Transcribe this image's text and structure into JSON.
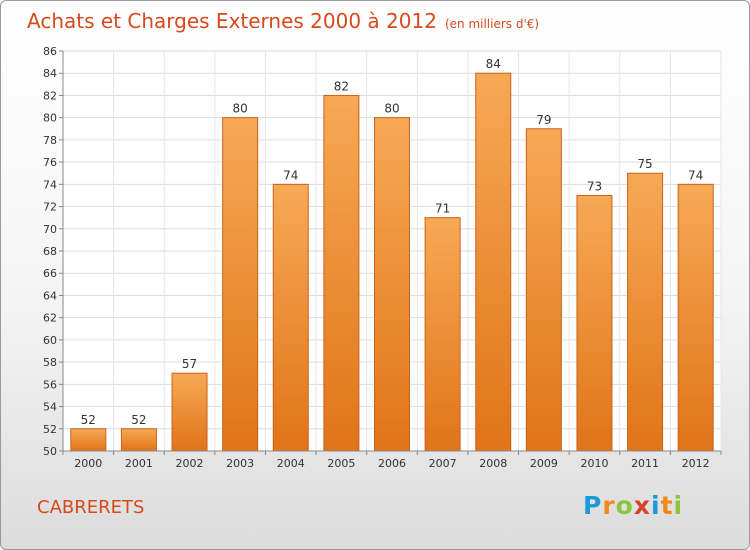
{
  "chart_data": {
    "type": "bar",
    "title": "Achats et Charges Externes 2000 à 2012",
    "subtitle": "(en milliers d'€)",
    "categories": [
      "2000",
      "2001",
      "2002",
      "2003",
      "2004",
      "2005",
      "2006",
      "2007",
      "2008",
      "2009",
      "2010",
      "2011",
      "2012"
    ],
    "values": [
      52,
      52,
      57,
      80,
      74,
      82,
      80,
      71,
      84,
      79,
      73,
      75,
      74
    ],
    "xlabel": "",
    "ylabel": "",
    "ylim": [
      50,
      86
    ],
    "yticks": [
      50,
      52,
      54,
      56,
      58,
      60,
      62,
      64,
      66,
      68,
      70,
      72,
      74,
      76,
      78,
      80,
      82,
      84,
      86
    ],
    "grid": true,
    "colors": {
      "bar_top": "#f7a955",
      "bar_bottom": "#e07418",
      "bar_edge": "#c9621a",
      "title": "#d64a1c"
    }
  },
  "commune": "CABRERETS",
  "logo": {
    "letters": [
      "P",
      "r",
      "o",
      "x",
      "i",
      "t",
      "i"
    ],
    "colors": [
      "#1a9bd7",
      "#f18a1c",
      "#8cc63e",
      "#d6432b",
      "#1a9bd7",
      "#f18a1c",
      "#8cc63e"
    ]
  }
}
